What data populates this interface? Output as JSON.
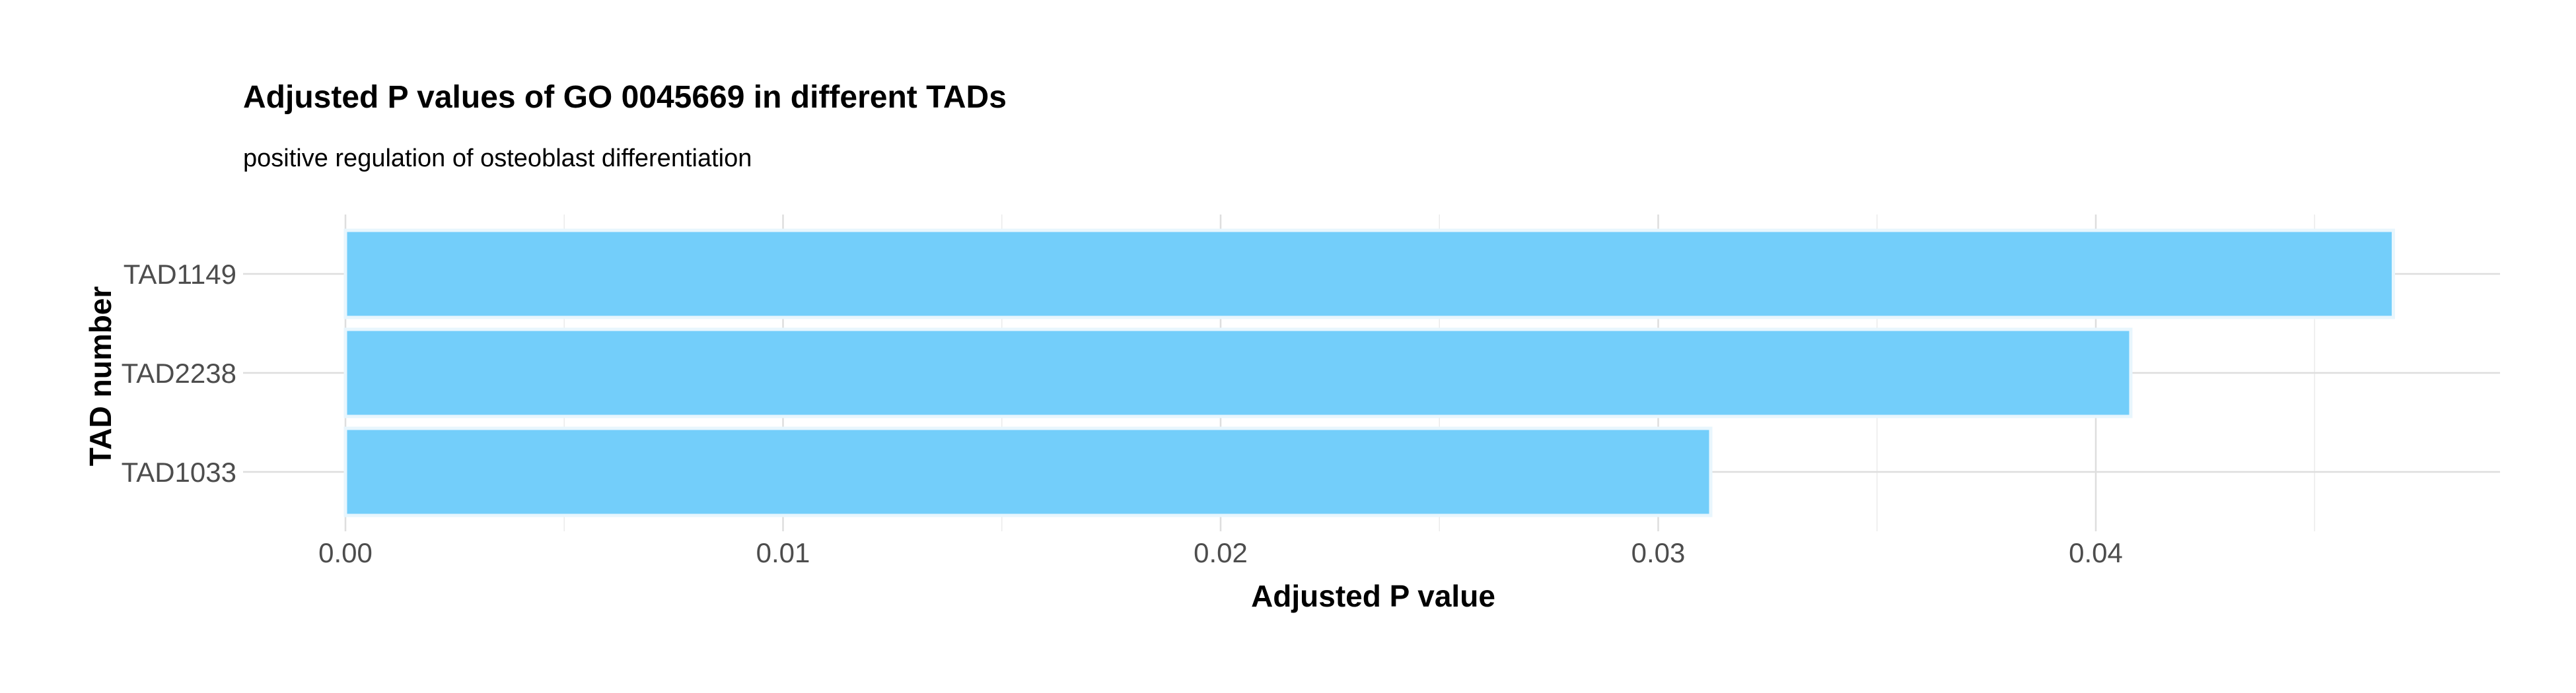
{
  "chart_data": {
    "type": "bar",
    "orientation": "horizontal",
    "title": "Adjusted P values of GO 0045669 in different TADs",
    "subtitle": "positive regulation of osteoblast differentiation",
    "xlabel": "Adjusted P value",
    "ylabel": "TAD number",
    "categories": [
      "TAD1149",
      "TAD2238",
      "TAD1033"
    ],
    "values": [
      0.0468,
      0.0408,
      0.0312
    ],
    "xlim": [
      0,
      0.0492
    ],
    "xticks": [
      0.0,
      0.01,
      0.02,
      0.03,
      0.04
    ],
    "xtick_labels": [
      "0.00",
      "0.01",
      "0.02",
      "0.03",
      "0.04"
    ],
    "grid": true,
    "legend": "none",
    "colors": {
      "bar_fill": "#73cefa",
      "bar_stroke": "#e8f6fd"
    }
  }
}
